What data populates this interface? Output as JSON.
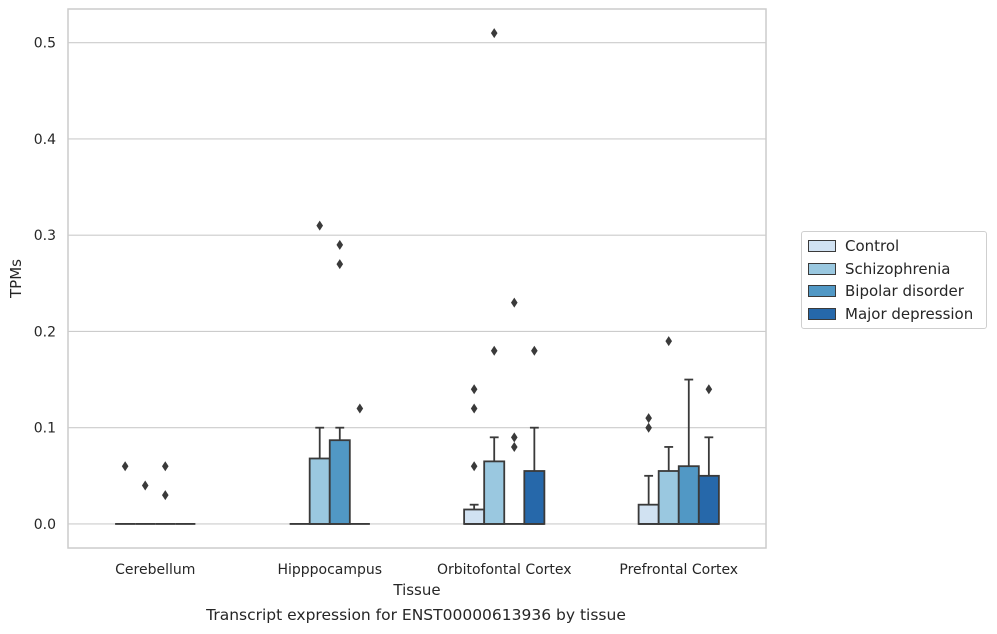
{
  "caption": "Transcript expression for ENST00000613936 by tissue",
  "chart_data": {
    "type": "box",
    "title": "",
    "xlabel": "Tissue",
    "ylabel": "TPMs",
    "categories": [
      "Cerebellum",
      "Hipppocampus",
      "Orbitofontal Cortex",
      "Prefrontal Cortex"
    ],
    "ylim": [
      -0.025,
      0.535
    ],
    "yticks": [
      "0.0",
      "0.1",
      "0.2",
      "0.3",
      "0.4",
      "0.5"
    ],
    "grid": true,
    "legend_position": "right",
    "series": [
      {
        "name": "Control",
        "color": "#d1e2f2",
        "boxes": [
          {
            "q1": 0,
            "q3": 0,
            "median": 0,
            "whisker_high": 0,
            "outliers": [
              0.06
            ]
          },
          {
            "q1": 0,
            "q3": 0,
            "median": 0,
            "whisker_high": 0,
            "outliers": []
          },
          {
            "q1": 0,
            "q3": 0.015,
            "median": 0,
            "whisker_high": 0.02,
            "outliers": [
              0.06,
              0.12,
              0.14
            ]
          },
          {
            "q1": 0,
            "q3": 0.02,
            "median": 0,
            "whisker_high": 0.05,
            "outliers": [
              0.1,
              0.11
            ]
          }
        ]
      },
      {
        "name": "Schizophrenia",
        "color": "#9ac8e0",
        "boxes": [
          {
            "q1": 0,
            "q3": 0,
            "median": 0,
            "whisker_high": 0,
            "outliers": [
              0.04
            ]
          },
          {
            "q1": 0,
            "q3": 0.068,
            "median": 0,
            "whisker_high": 0.1,
            "outliers": [
              0.31
            ]
          },
          {
            "q1": 0,
            "q3": 0.065,
            "median": 0,
            "whisker_high": 0.09,
            "outliers": [
              0.18,
              0.51
            ]
          },
          {
            "q1": 0,
            "q3": 0.055,
            "median": 0,
            "whisker_high": 0.08,
            "outliers": [
              0.19
            ]
          }
        ]
      },
      {
        "name": "Bipolar disorder",
        "color": "#5198c5",
        "boxes": [
          {
            "q1": 0,
            "q3": 0,
            "median": 0,
            "whisker_high": 0,
            "outliers": [
              0.03,
              0.06
            ]
          },
          {
            "q1": 0,
            "q3": 0.087,
            "median": 0,
            "whisker_high": 0.1,
            "outliers": [
              0.27,
              0.29
            ]
          },
          {
            "q1": 0,
            "q3": 0,
            "median": 0,
            "whisker_high": 0,
            "outliers": [
              0.08,
              0.09,
              0.23
            ]
          },
          {
            "q1": 0,
            "q3": 0.06,
            "median": 0,
            "whisker_high": 0.15,
            "outliers": []
          }
        ]
      },
      {
        "name": "Major depression",
        "color": "#2668aa",
        "boxes": [
          {
            "q1": 0,
            "q3": 0,
            "median": 0,
            "whisker_high": 0,
            "outliers": []
          },
          {
            "q1": 0,
            "q3": 0,
            "median": 0,
            "whisker_high": 0,
            "outliers": [
              0.12
            ]
          },
          {
            "q1": 0,
            "q3": 0.055,
            "median": 0,
            "whisker_high": 0.1,
            "outliers": [
              0.18
            ]
          },
          {
            "q1": 0,
            "q3": 0.05,
            "median": 0,
            "whisker_high": 0.09,
            "outliers": [
              0.14
            ]
          }
        ]
      }
    ]
  }
}
